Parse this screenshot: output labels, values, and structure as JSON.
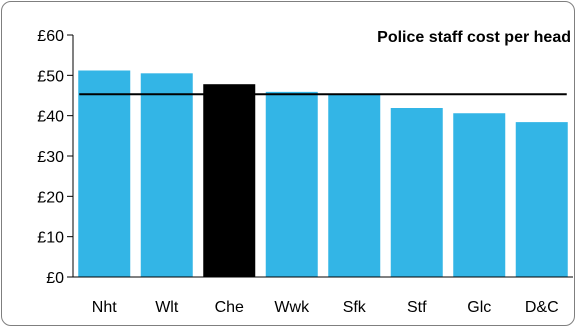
{
  "chart_data": {
    "type": "bar",
    "title": "Police staff cost per head",
    "categories": [
      "Nht",
      "Wlt",
      "Che",
      "Wwk",
      "Sfk",
      "Stf",
      "Glc",
      "D&C"
    ],
    "series": [
      {
        "values": [
          51.2,
          50.5,
          47.8,
          45.9,
          45.3,
          41.9,
          40.6,
          38.4
        ]
      }
    ],
    "highlight_category": "Che",
    "reference_line_value": 45.3,
    "ylim": [
      0,
      60
    ],
    "y_ticks": [
      "£0",
      "£10",
      "£20",
      "£30",
      "£40",
      "£50",
      "£60"
    ],
    "y_tick_values": [
      0,
      10,
      20,
      30,
      40,
      50,
      60
    ],
    "grid": false,
    "legend": "none",
    "colors": {
      "bar": "#33b5e6",
      "highlight": "#000000",
      "reference_line": "#000000",
      "frame": "#7f7f7f"
    }
  }
}
